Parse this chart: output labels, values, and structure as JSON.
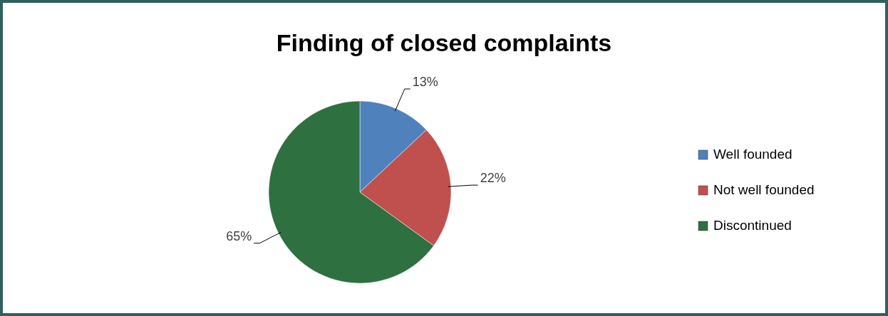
{
  "chart_data": {
    "type": "pie",
    "title": "Finding of closed complaints",
    "categories": [
      "Well founded",
      "Not well founded",
      "Discontinued"
    ],
    "values": [
      13,
      22,
      65
    ],
    "colors": [
      "#4f81bd",
      "#c0504d",
      "#2e7040"
    ],
    "value_labels": [
      "13%",
      "22%",
      "65%"
    ],
    "legend": "right"
  }
}
